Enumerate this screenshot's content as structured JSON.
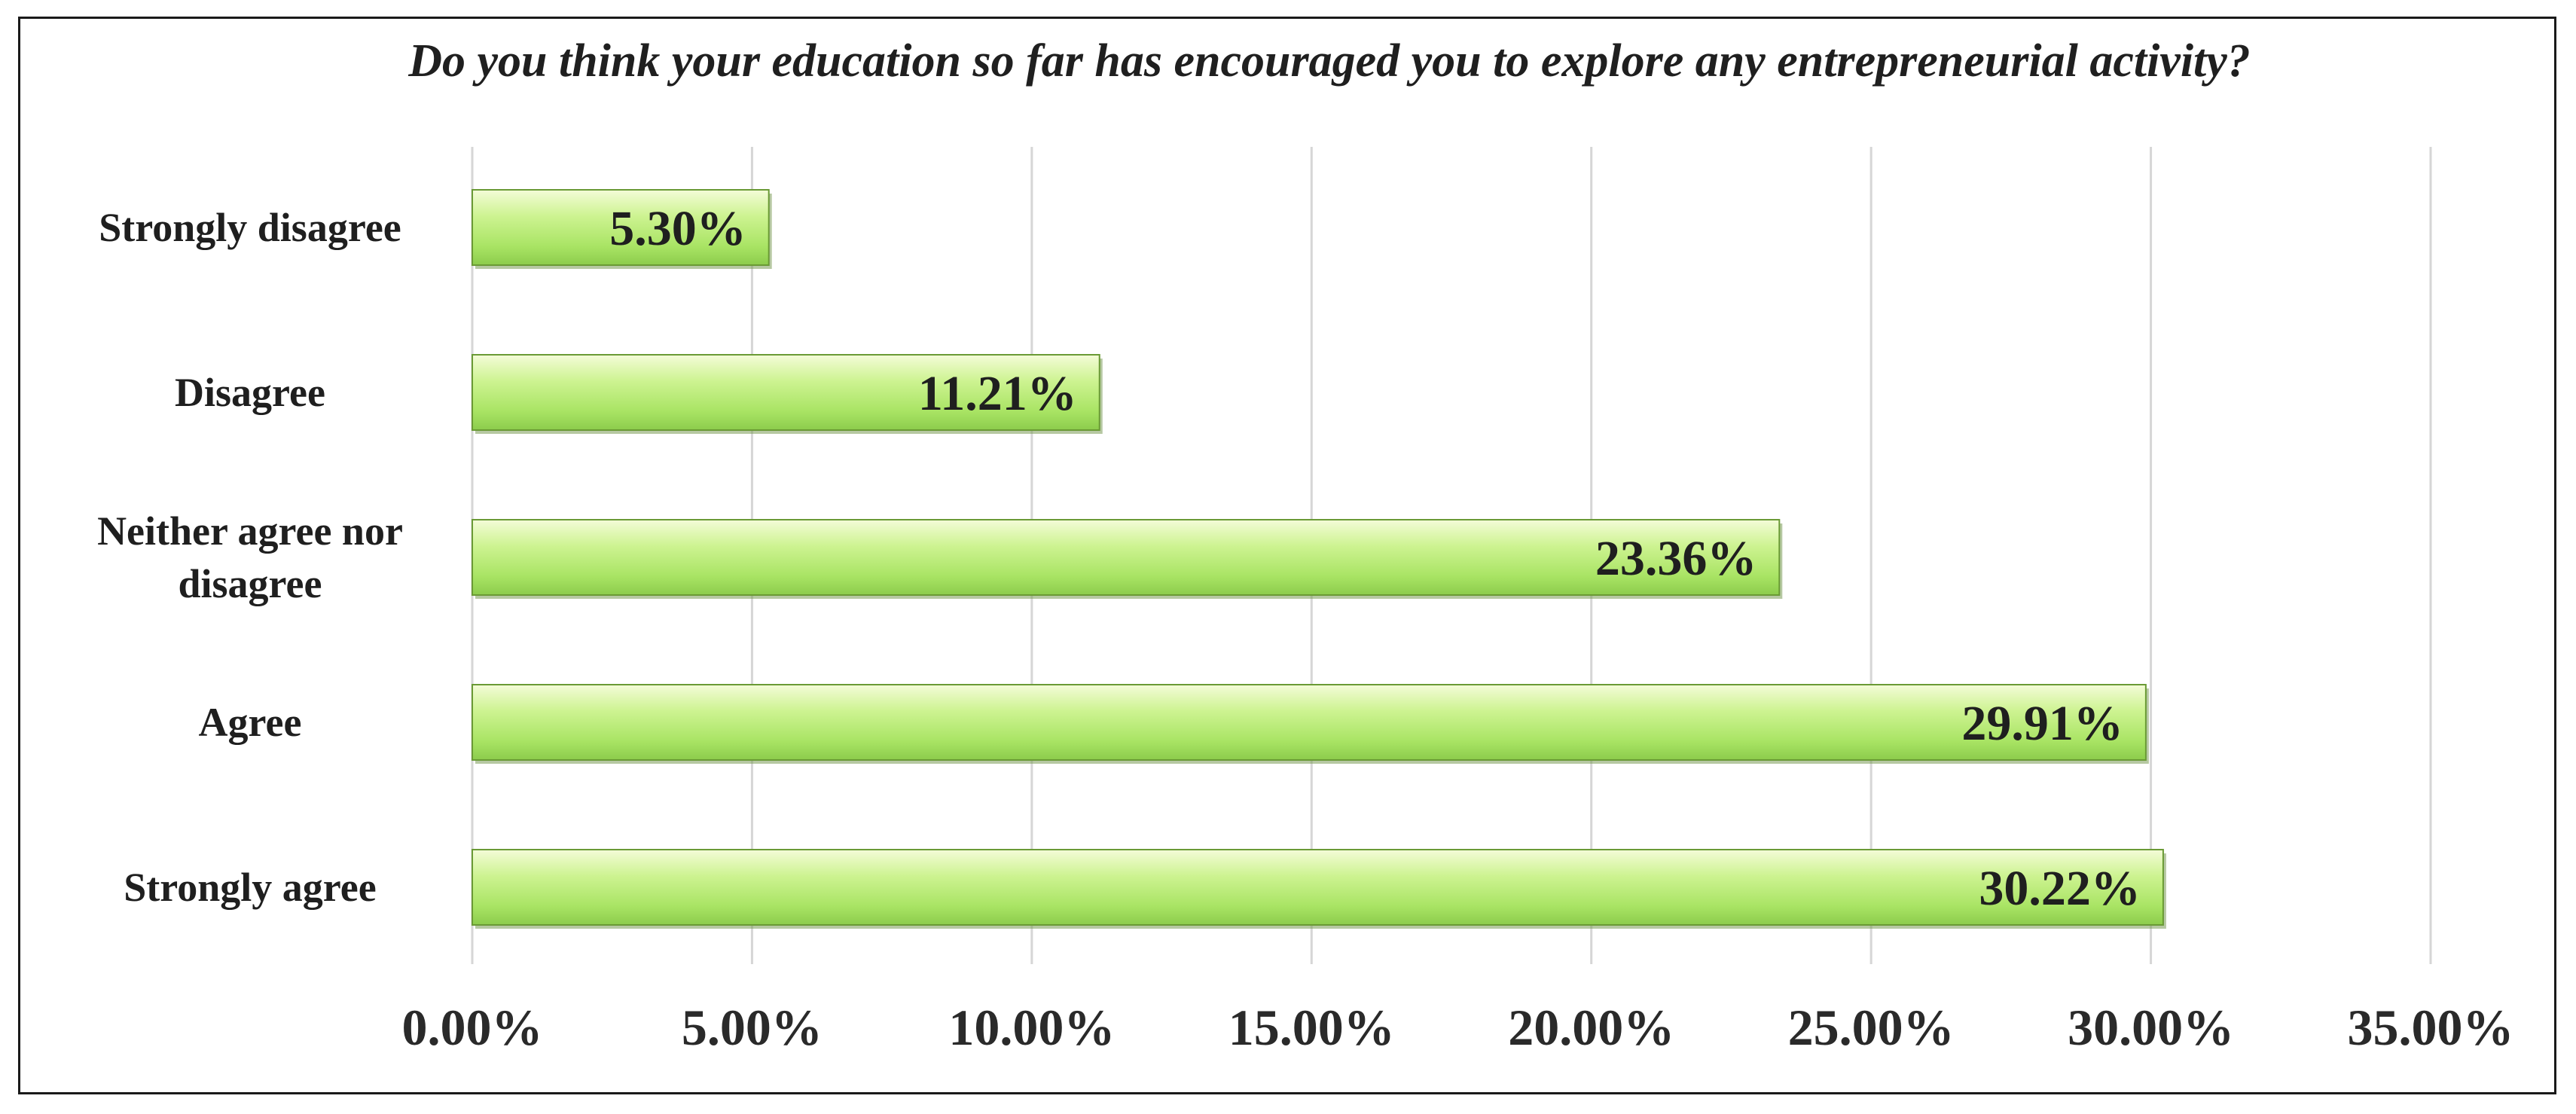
{
  "chart_data": {
    "type": "bar",
    "orientation": "horizontal",
    "title": "Do you think your education so far has encouraged you to explore any entrepreneurial activity?",
    "categories": [
      "Strongly disagree",
      "Disagree",
      "Neither agree nor disagree",
      "Agree",
      "Strongly agree"
    ],
    "category_lines": [
      [
        "Strongly disagree"
      ],
      [
        "Disagree"
      ],
      [
        "Neither agree nor",
        "disagree"
      ],
      [
        "Agree"
      ],
      [
        "Strongly agree"
      ]
    ],
    "values": [
      5.3,
      11.21,
      23.36,
      29.91,
      30.22
    ],
    "data_labels": [
      "5.30%",
      "11.21%",
      "23.36%",
      "29.91%",
      "30.22%"
    ],
    "xlim": [
      0,
      35
    ],
    "x_ticks": [
      0,
      5,
      10,
      15,
      20,
      25,
      30,
      35
    ],
    "x_tick_labels": [
      "0.00%",
      "5.00%",
      "10.00%",
      "15.00%",
      "20.00%",
      "25.00%",
      "30.00%",
      "35.00%"
    ],
    "xlabel": "",
    "ylabel": "",
    "grid": true,
    "legend": "none",
    "colors": {
      "bar_light": "#f2fbd2",
      "bar_mid": "#b9ec74",
      "bar_dark": "#8fd14f",
      "bar_edge": "#6a9a35",
      "grid": "#d6d6d6",
      "text": "#1f1f1f"
    }
  }
}
